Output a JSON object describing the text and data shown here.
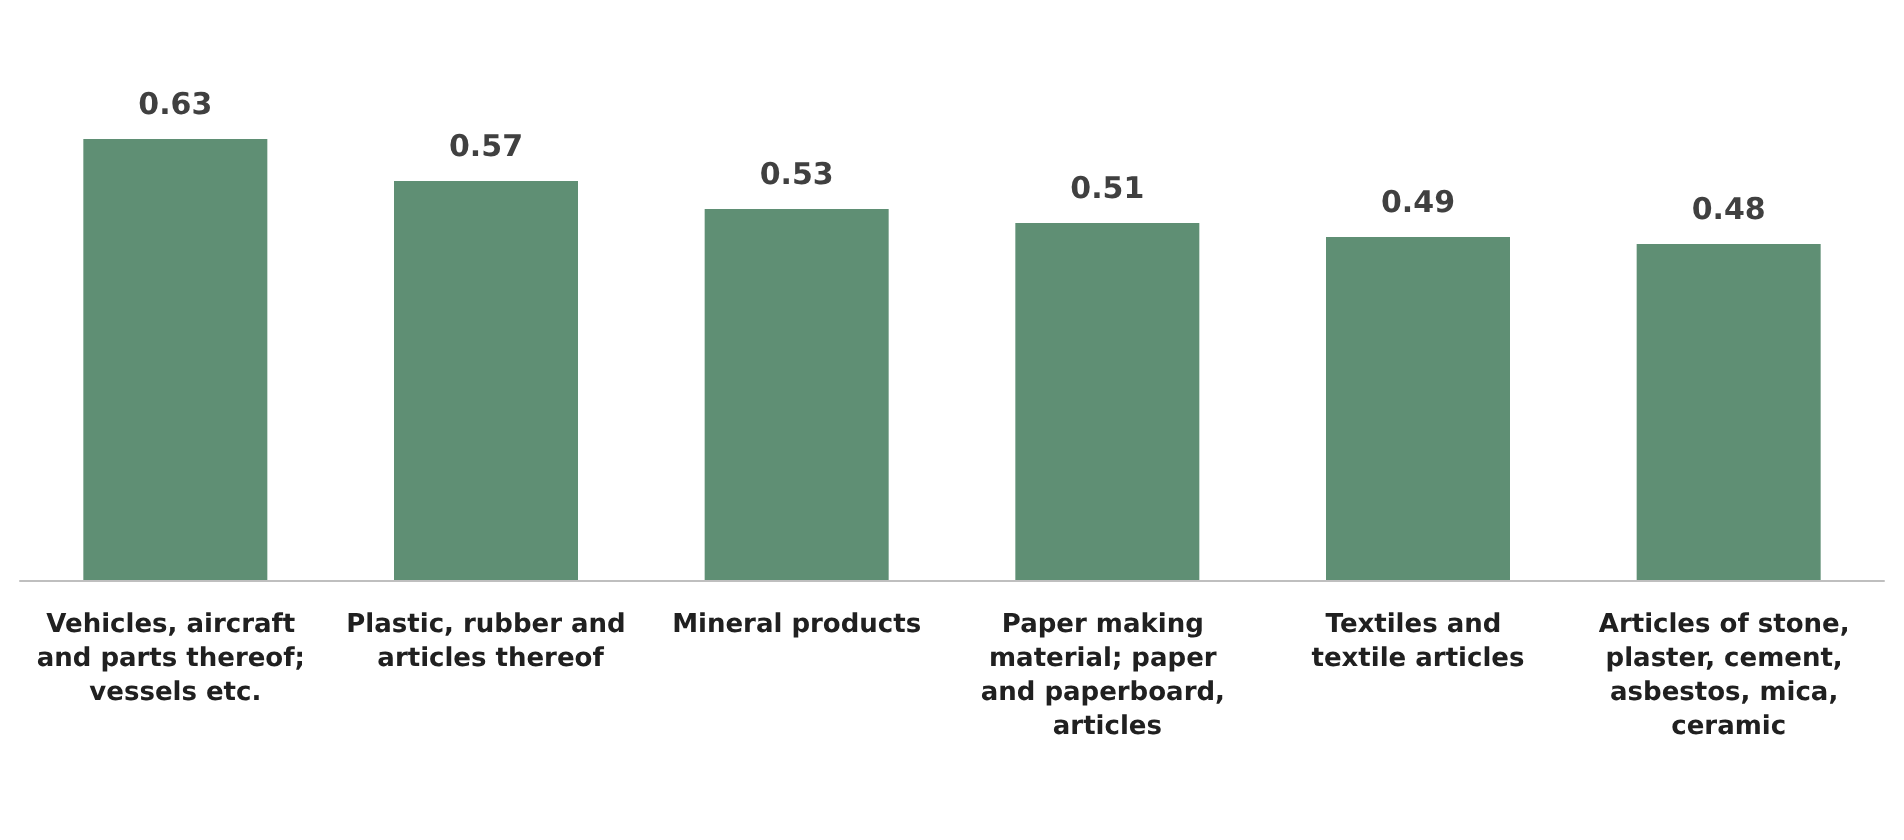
{
  "chart_data": {
    "type": "bar",
    "categories": [
      "Vehicles, aircraft and parts thereof; vessels etc.",
      "Plastic, rubber and articles thereof",
      "Mineral products",
      "Paper making material; paper and paperboard, articles",
      "Textiles and textile articles",
      "Articles of stone, plaster, cement, asbestos, mica, ceramic"
    ],
    "values": [
      0.63,
      0.57,
      0.53,
      0.51,
      0.49,
      0.48
    ],
    "color": "#5f8f74",
    "data_labels": true
  }
}
